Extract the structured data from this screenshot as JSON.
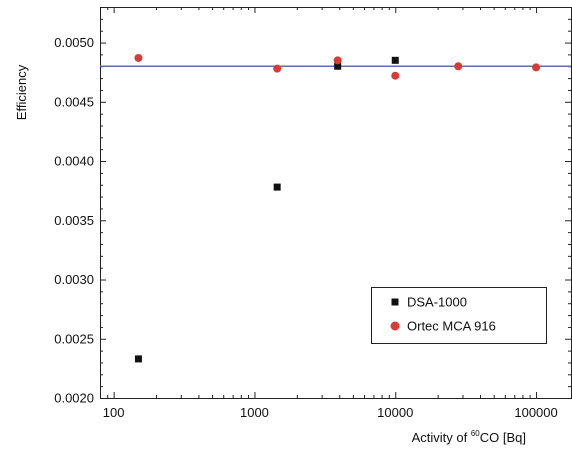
{
  "chart_data": {
    "type": "scatter",
    "title": "",
    "ylabel": "Efficiency",
    "xlabel": {
      "prefix": "Activity of ",
      "superscript": "60",
      "suffix": "CO [Bq]"
    },
    "xscale": "log",
    "xlim": [
      80,
      180000
    ],
    "ylim": [
      0.002,
      0.0053
    ],
    "x_ticks": [
      {
        "value": 100,
        "label": "100"
      },
      {
        "value": 1000,
        "label": "1000"
      },
      {
        "value": 10000,
        "label": "10000"
      },
      {
        "value": 100000,
        "label": "100000"
      }
    ],
    "y_ticks": [
      {
        "value": 0.002,
        "label": "0.0020"
      },
      {
        "value": 0.0025,
        "label": "0.0025"
      },
      {
        "value": 0.003,
        "label": "0.0030"
      },
      {
        "value": 0.0035,
        "label": "0.0035"
      },
      {
        "value": 0.004,
        "label": "0.0040"
      },
      {
        "value": 0.0045,
        "label": "0.0045"
      },
      {
        "value": 0.005,
        "label": "0.0050"
      }
    ],
    "reference_line": {
      "y": 0.0048,
      "color": "#5b6fa6"
    },
    "series": [
      {
        "name": "DSA-1000",
        "marker": "square",
        "color": "#111111",
        "points": [
          {
            "x": 150,
            "y": 0.00233
          },
          {
            "x": 1450,
            "y": 0.00378
          },
          {
            "x": 3900,
            "y": 0.0048
          },
          {
            "x": 10000,
            "y": 0.00485
          }
        ]
      },
      {
        "name": "Ortec MCA 916",
        "marker": "circle",
        "color": "#d93a36",
        "points": [
          {
            "x": 150,
            "y": 0.00487
          },
          {
            "x": 1450,
            "y": 0.00478
          },
          {
            "x": 3900,
            "y": 0.00485
          },
          {
            "x": 10000,
            "y": 0.00472
          },
          {
            "x": 28000,
            "y": 0.0048
          },
          {
            "x": 100000,
            "y": 0.00479
          }
        ]
      }
    ],
    "legend": {
      "position": "lower-right"
    }
  }
}
